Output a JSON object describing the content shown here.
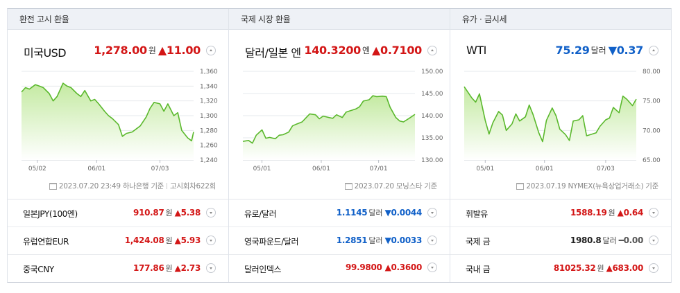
{
  "panels": [
    {
      "header": "환전 고시 환율",
      "main": {
        "name": "미국USD",
        "value": "1,278.00",
        "unit": "원",
        "change": "▲11.00",
        "dir": "up",
        "value_color": "up"
      },
      "source": {
        "text": "2023.07.20 23:49 하나은행 기준",
        "extra": "고시회차622회"
      },
      "chart": {
        "x": [
          "2023-04-24",
          "2023-04-26",
          "2023-04-28",
          "2023-05-01",
          "2023-05-03",
          "2023-05-05",
          "2023-05-08",
          "2023-05-10",
          "2023-05-12",
          "2023-05-15",
          "2023-05-17",
          "2023-05-19",
          "2023-05-22",
          "2023-05-24",
          "2023-05-26",
          "2023-05-29",
          "2023-05-31",
          "2023-06-02",
          "2023-06-05",
          "2023-06-07",
          "2023-06-09",
          "2023-06-12",
          "2023-06-14",
          "2023-06-16",
          "2023-06-19",
          "2023-06-21",
          "2023-06-23",
          "2023-06-26",
          "2023-06-28",
          "2023-06-30",
          "2023-07-03",
          "2023-07-05",
          "2023-07-07",
          "2023-07-10",
          "2023-07-12",
          "2023-07-14",
          "2023-07-17",
          "2023-07-19",
          "2023-07-20"
        ],
        "y": [
          1332,
          1338,
          1336,
          1342,
          1340,
          1338,
          1330,
          1320,
          1326,
          1344,
          1340,
          1338,
          1330,
          1326,
          1334,
          1320,
          1322,
          1316,
          1306,
          1300,
          1296,
          1288,
          1272,
          1276,
          1278,
          1282,
          1286,
          1298,
          1310,
          1318,
          1316,
          1306,
          1316,
          1300,
          1304,
          1280,
          1270,
          1266,
          1278
        ],
        "ylim": [
          1240,
          1360
        ],
        "yticks": [
          "1,360",
          "1,340",
          "1,320",
          "1,300",
          "1,280",
          "1,260",
          "1,240"
        ],
        "ytick_values": [
          1360,
          1340,
          1320,
          1300,
          1280,
          1260,
          1240
        ],
        "xticks": [
          {
            "label": "05/02",
            "x": "2023-05-02"
          },
          {
            "label": "06/01",
            "x": "2023-06-01"
          },
          {
            "label": "07/03",
            "x": "2023-07-03"
          }
        ]
      },
      "rows": [
        {
          "name": "일본JPY(100엔)",
          "value": "910.87",
          "unit": "원",
          "change": "▲5.38",
          "dir": "up",
          "value_color": "up"
        },
        {
          "name": "유럽연합EUR",
          "value": "1,424.08",
          "unit": "원",
          "change": "▲5.93",
          "dir": "up",
          "value_color": "up"
        },
        {
          "name": "중국CNY",
          "value": "177.86",
          "unit": "원",
          "change": "▲2.73",
          "dir": "up",
          "value_color": "up"
        }
      ]
    },
    {
      "header": "국제 시장 환율",
      "main": {
        "name": "달러/일본 엔",
        "value": "140.3200",
        "unit": "엔",
        "change": "▲0.7100",
        "dir": "up",
        "value_color": "up"
      },
      "source": {
        "text": "2023.07.20 모닝스타 기준",
        "extra": ""
      },
      "chart": {
        "x": [
          "2023-04-21",
          "2023-04-24",
          "2023-04-26",
          "2023-04-28",
          "2023-05-01",
          "2023-05-03",
          "2023-05-05",
          "2023-05-08",
          "2023-05-10",
          "2023-05-12",
          "2023-05-15",
          "2023-05-17",
          "2023-05-19",
          "2023-05-22",
          "2023-05-24",
          "2023-05-26",
          "2023-05-29",
          "2023-05-31",
          "2023-06-02",
          "2023-06-05",
          "2023-06-07",
          "2023-06-09",
          "2023-06-12",
          "2023-06-14",
          "2023-06-16",
          "2023-06-19",
          "2023-06-21",
          "2023-06-23",
          "2023-06-26",
          "2023-06-28",
          "2023-06-30",
          "2023-07-03",
          "2023-07-05",
          "2023-07-07",
          "2023-07-10",
          "2023-07-12",
          "2023-07-14",
          "2023-07-17",
          "2023-07-20"
        ],
        "y": [
          134.2,
          134.4,
          133.8,
          135.6,
          136.8,
          134.9,
          135.1,
          134.8,
          135.6,
          135.7,
          136.3,
          137.7,
          138.1,
          138.6,
          139.5,
          140.4,
          140.2,
          139.3,
          139.9,
          139.6,
          139.4,
          140.2,
          139.6,
          140.8,
          141.1,
          141.5,
          142.0,
          143.3,
          143.6,
          144.5,
          144.3,
          144.4,
          144.3,
          141.9,
          139.6,
          138.8,
          138.6,
          139.4,
          140.3
        ],
        "ylim": [
          130,
          150
        ],
        "yticks": [
          "150.00",
          "145.00",
          "140.00",
          "135.00",
          "130.00"
        ],
        "ytick_values": [
          150,
          145,
          140,
          135,
          130
        ],
        "xticks": [
          {
            "label": "05/01",
            "x": "2023-05-01"
          },
          {
            "label": "06/01",
            "x": "2023-06-01"
          },
          {
            "label": "07/01",
            "x": "2023-07-01"
          }
        ]
      },
      "rows": [
        {
          "name": "유로/달러",
          "value": "1.1145",
          "unit": "달러",
          "change": "▼0.0044",
          "dir": "down",
          "value_color": "down"
        },
        {
          "name": "영국파운드/달러",
          "value": "1.2851",
          "unit": "달러",
          "change": "▼0.0033",
          "dir": "down",
          "value_color": "down"
        },
        {
          "name": "달러인덱스",
          "value": "99.9800",
          "unit": "",
          "change": "▲0.3600",
          "dir": "up",
          "value_color": "up"
        }
      ]
    },
    {
      "header": "유가 · 금시세",
      "main": {
        "name": "WTI",
        "value": "75.29",
        "unit": "달러",
        "change": "▼0.37",
        "dir": "down",
        "value_color": "down"
      },
      "source": {
        "text": "2023.07.19 NYMEX(뉴욕상업거래소) 기준",
        "extra": ""
      },
      "chart": {
        "x": [
          "2023-04-20",
          "2023-04-24",
          "2023-04-26",
          "2023-04-28",
          "2023-05-01",
          "2023-05-03",
          "2023-05-05",
          "2023-05-08",
          "2023-05-10",
          "2023-05-12",
          "2023-05-15",
          "2023-05-17",
          "2023-05-19",
          "2023-05-22",
          "2023-05-24",
          "2023-05-26",
          "2023-05-29",
          "2023-05-31",
          "2023-06-02",
          "2023-06-05",
          "2023-06-07",
          "2023-06-09",
          "2023-06-12",
          "2023-06-14",
          "2023-06-16",
          "2023-06-19",
          "2023-06-21",
          "2023-06-23",
          "2023-06-26",
          "2023-06-28",
          "2023-06-30",
          "2023-07-03",
          "2023-07-05",
          "2023-07-07",
          "2023-07-10",
          "2023-07-12",
          "2023-07-14",
          "2023-07-17",
          "2023-07-19"
        ],
        "y": [
          77.4,
          75.5,
          74.8,
          76.2,
          71.7,
          69.4,
          71.3,
          73.2,
          72.6,
          70.0,
          71.1,
          72.8,
          71.6,
          72.3,
          74.3,
          72.7,
          69.6,
          68.1,
          71.7,
          73.8,
          72.5,
          70.2,
          69.3,
          68.3,
          71.6,
          71.8,
          72.5,
          69.1,
          69.4,
          69.6,
          70.7,
          71.8,
          72.1,
          73.9,
          73.0,
          75.8,
          75.3,
          74.2,
          75.3
        ],
        "ylim": [
          65,
          80
        ],
        "yticks": [
          "80.00",
          "75.00",
          "70.00",
          "65.00"
        ],
        "ytick_values": [
          80,
          75,
          70,
          65
        ],
        "xticks": [
          {
            "label": "05/01",
            "x": "2023-05-01"
          },
          {
            "label": "06/01",
            "x": "2023-06-01"
          },
          {
            "label": "07/03",
            "x": "2023-07-03"
          }
        ]
      },
      "rows": [
        {
          "name": "휘발유",
          "value": "1588.19",
          "unit": "원",
          "change": "▲0.64",
          "dir": "up",
          "value_color": "up"
        },
        {
          "name": "국제 금",
          "value": "1980.8",
          "unit": "달러",
          "change": "━0.00",
          "dir": "flat",
          "value_color": "black"
        },
        {
          "name": "국내 금",
          "value": "81025.32",
          "unit": "원",
          "change": "▲683.00",
          "dir": "up",
          "value_color": "up"
        }
      ]
    }
  ],
  "colors": {
    "up": "#d31616",
    "down": "#1060c8",
    "line": "#5ab82c",
    "fill_top": "#c4eaa2",
    "fill_bottom": "#ffffff",
    "grid": "#e6e8ec",
    "tick": "#666666"
  }
}
